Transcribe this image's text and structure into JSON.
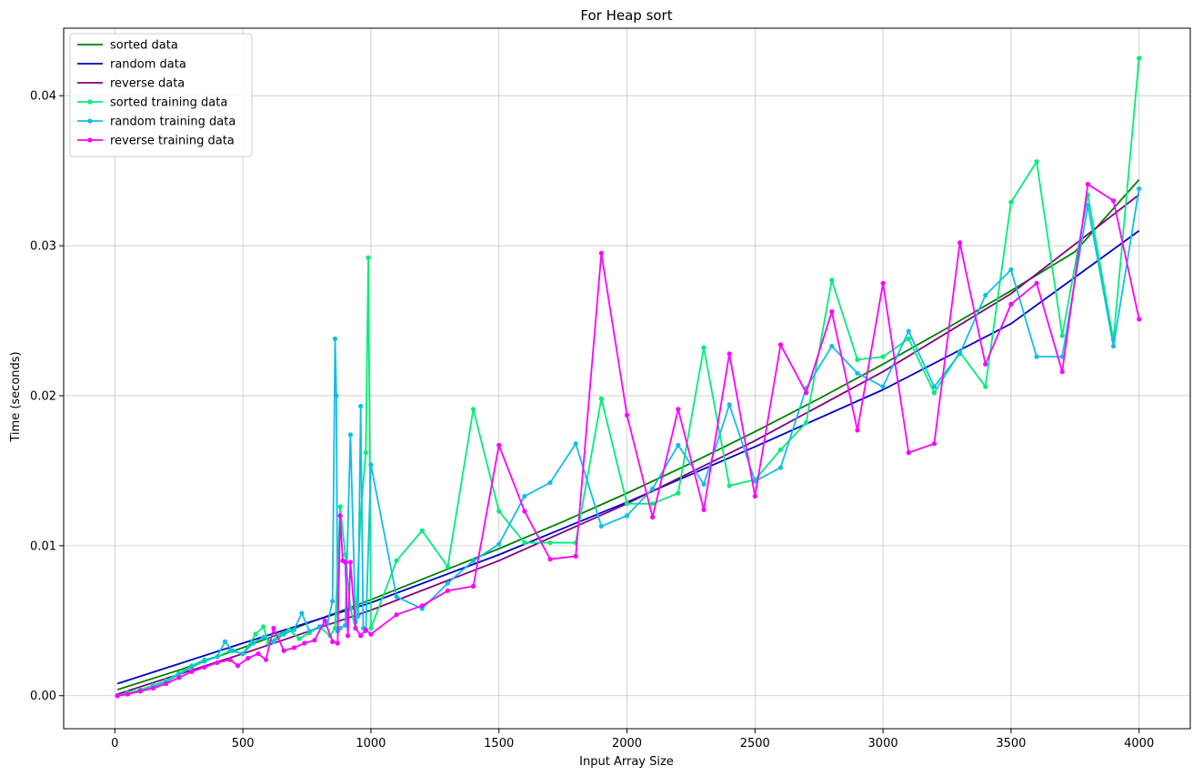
{
  "chart_data": {
    "type": "line",
    "title": "For Heap sort",
    "xlabel": "Input Array Size",
    "ylabel": "Time (seconds)",
    "xlim": [
      -200,
      4200
    ],
    "ylim": [
      -0.0022,
      0.0445
    ],
    "xticks": [
      0,
      500,
      1000,
      1500,
      2000,
      2500,
      3000,
      3500,
      4000
    ],
    "yticks": [
      0.0,
      0.01,
      0.02,
      0.03,
      0.04
    ],
    "xtick_labels": [
      "0",
      "500",
      "1000",
      "1500",
      "2000",
      "2500",
      "3000",
      "3500",
      "4000"
    ],
    "ytick_labels": [
      "0.00",
      "0.01",
      "0.02",
      "0.03",
      "0.04"
    ],
    "grid": true,
    "legend_position": "top-left",
    "series": [
      {
        "name": "sorted data",
        "color": "#008000",
        "style": "line",
        "x": [
          10,
          250,
          500,
          750,
          1000,
          1250,
          1500,
          1750,
          2000,
          2250,
          2500,
          2750,
          3000,
          3250,
          3500,
          3750,
          4000
        ],
        "y": [
          0.0004,
          0.0017,
          0.0032,
          0.0048,
          0.0064,
          0.0081,
          0.0098,
          0.0116,
          0.0135,
          0.0155,
          0.0176,
          0.0198,
          0.0221,
          0.0245,
          0.027,
          0.0296,
          0.0344
        ]
      },
      {
        "name": "random data",
        "color": "#0000cd",
        "style": "line",
        "x": [
          10,
          500,
          1000,
          1500,
          2000,
          2500,
          3000,
          3500,
          4000
        ],
        "y": [
          0.0008,
          0.0035,
          0.0062,
          0.0094,
          0.0129,
          0.0166,
          0.0204,
          0.0248,
          0.031
        ]
      },
      {
        "name": "reverse data",
        "color": "#800080",
        "style": "line",
        "x": [
          10,
          500,
          1000,
          1500,
          2000,
          2500,
          3000,
          3500,
          4000
        ],
        "y": [
          0.0001,
          0.0028,
          0.0057,
          0.009,
          0.0128,
          0.017,
          0.0216,
          0.0268,
          0.0334
        ]
      },
      {
        "name": "sorted training data",
        "color": "#00ee76",
        "style": "marker-line",
        "x": [
          10,
          50,
          100,
          150,
          200,
          250,
          300,
          350,
          400,
          450,
          500,
          550,
          580,
          600,
          640,
          680,
          720,
          760,
          800,
          840,
          860,
          880,
          900,
          920,
          940,
          960,
          980,
          990,
          1000,
          1100,
          1200,
          1300,
          1400,
          1500,
          1600,
          1700,
          1800,
          1900,
          2000,
          2100,
          2200,
          2300,
          2400,
          2500,
          2600,
          2700,
          2800,
          2900,
          3000,
          3100,
          3200,
          3300,
          3400,
          3500,
          3600,
          3700,
          3800,
          3900,
          4000
        ],
        "y": [
          0.0,
          0.0002,
          0.0004,
          0.0007,
          0.001,
          0.0015,
          0.002,
          0.0024,
          0.0026,
          0.003,
          0.0028,
          0.0041,
          0.0046,
          0.0035,
          0.004,
          0.0044,
          0.0038,
          0.0042,
          0.0046,
          0.004,
          0.0045,
          0.0126,
          0.0094,
          0.0058,
          0.0045,
          0.0121,
          0.0162,
          0.0292,
          0.0045,
          0.009,
          0.011,
          0.0086,
          0.0191,
          0.0123,
          0.0102,
          0.0102,
          0.0102,
          0.0198,
          0.0128,
          0.0128,
          0.0135,
          0.0232,
          0.014,
          0.0144,
          0.0164,
          0.0182,
          0.0277,
          0.0224,
          0.0226,
          0.0238,
          0.0202,
          0.0229,
          0.0206,
          0.0329,
          0.0356,
          0.024,
          0.0334,
          0.0237,
          0.0425
        ]
      },
      {
        "name": "random training data",
        "color": "#12bde8",
        "style": "marker-line",
        "x": [
          10,
          50,
          100,
          150,
          200,
          250,
          300,
          350,
          400,
          430,
          460,
          500,
          540,
          580,
          620,
          660,
          700,
          730,
          760,
          800,
          830,
          850,
          860,
          865,
          870,
          880,
          900,
          920,
          940,
          950,
          960,
          970,
          980,
          1000,
          1100,
          1200,
          1300,
          1400,
          1500,
          1600,
          1700,
          1800,
          1900,
          2000,
          2100,
          2200,
          2300,
          2400,
          2500,
          2600,
          2700,
          2800,
          2900,
          3000,
          3100,
          3200,
          3300,
          3400,
          3500,
          3600,
          3700,
          3800,
          3900,
          4000
        ],
        "y": [
          0.0,
          0.0001,
          0.0003,
          0.0006,
          0.0009,
          0.0014,
          0.0019,
          0.0023,
          0.0026,
          0.0036,
          0.003,
          0.0028,
          0.0035,
          0.0039,
          0.0036,
          0.0041,
          0.0044,
          0.0055,
          0.0043,
          0.0046,
          0.0048,
          0.0063,
          0.0238,
          0.02,
          0.0043,
          0.0045,
          0.0047,
          0.0174,
          0.0049,
          0.0053,
          0.0193,
          0.0045,
          0.0043,
          0.0154,
          0.0066,
          0.0058,
          0.0075,
          0.009,
          0.0101,
          0.0133,
          0.0142,
          0.0168,
          0.0113,
          0.012,
          0.0138,
          0.0167,
          0.0141,
          0.0194,
          0.0143,
          0.0152,
          0.0205,
          0.0233,
          0.0215,
          0.0206,
          0.0243,
          0.0206,
          0.0228,
          0.0267,
          0.0284,
          0.0226,
          0.0226,
          0.0327,
          0.0233,
          0.0338
        ]
      },
      {
        "name": "reverse training data",
        "color": "#ff00ff",
        "style": "marker-line",
        "x": [
          10,
          50,
          100,
          150,
          200,
          250,
          300,
          350,
          400,
          450,
          480,
          520,
          560,
          590,
          620,
          660,
          700,
          740,
          780,
          820,
          850,
          870,
          880,
          890,
          900,
          910,
          920,
          940,
          960,
          980,
          1000,
          1100,
          1200,
          1300,
          1400,
          1500,
          1600,
          1700,
          1800,
          1900,
          2000,
          2100,
          2200,
          2300,
          2400,
          2500,
          2600,
          2700,
          2800,
          2900,
          3000,
          3100,
          3200,
          3300,
          3400,
          3500,
          3600,
          3700,
          3800,
          3900,
          4000
        ],
        "y": [
          0.0,
          0.0001,
          0.0003,
          0.0005,
          0.0008,
          0.0012,
          0.0016,
          0.0019,
          0.0022,
          0.0024,
          0.002,
          0.0025,
          0.0028,
          0.0024,
          0.0045,
          0.003,
          0.0032,
          0.0035,
          0.0037,
          0.005,
          0.0036,
          0.0035,
          0.012,
          0.009,
          0.0089,
          0.004,
          0.0089,
          0.0045,
          0.004,
          0.0044,
          0.0041,
          0.0054,
          0.006,
          0.007,
          0.0073,
          0.0167,
          0.0123,
          0.0091,
          0.0093,
          0.0295,
          0.0187,
          0.0119,
          0.0191,
          0.0124,
          0.0228,
          0.0133,
          0.0234,
          0.0202,
          0.0256,
          0.0177,
          0.0275,
          0.0162,
          0.0168,
          0.0302,
          0.0221,
          0.0261,
          0.0275,
          0.0216,
          0.0341,
          0.033,
          0.0251
        ]
      }
    ]
  }
}
